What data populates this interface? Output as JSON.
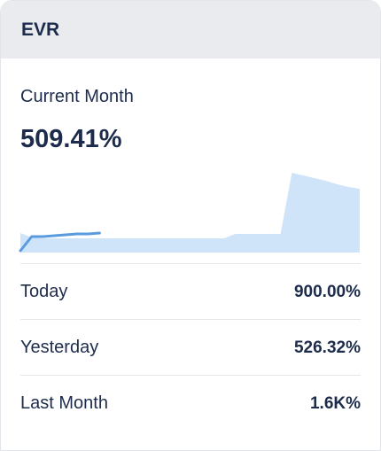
{
  "header": {
    "title": "EVR"
  },
  "current_month": {
    "label": "Current Month",
    "value": "509.41%"
  },
  "sparkline": {
    "previous": [
      22,
      17,
      16,
      16,
      16,
      16,
      16,
      16,
      16,
      16,
      16,
      16,
      16,
      16,
      16,
      16,
      16,
      16,
      16,
      21,
      21,
      21,
      21,
      21,
      90,
      87,
      84,
      81,
      77,
      74,
      72
    ],
    "current": [
      2,
      18,
      18,
      19,
      20,
      21,
      21,
      22
    ]
  },
  "rows": [
    {
      "label": "Today",
      "value": "900.00%"
    },
    {
      "label": "Yesterday",
      "value": "526.32%"
    },
    {
      "label": "Last Month",
      "value": "1.6K%"
    }
  ]
}
